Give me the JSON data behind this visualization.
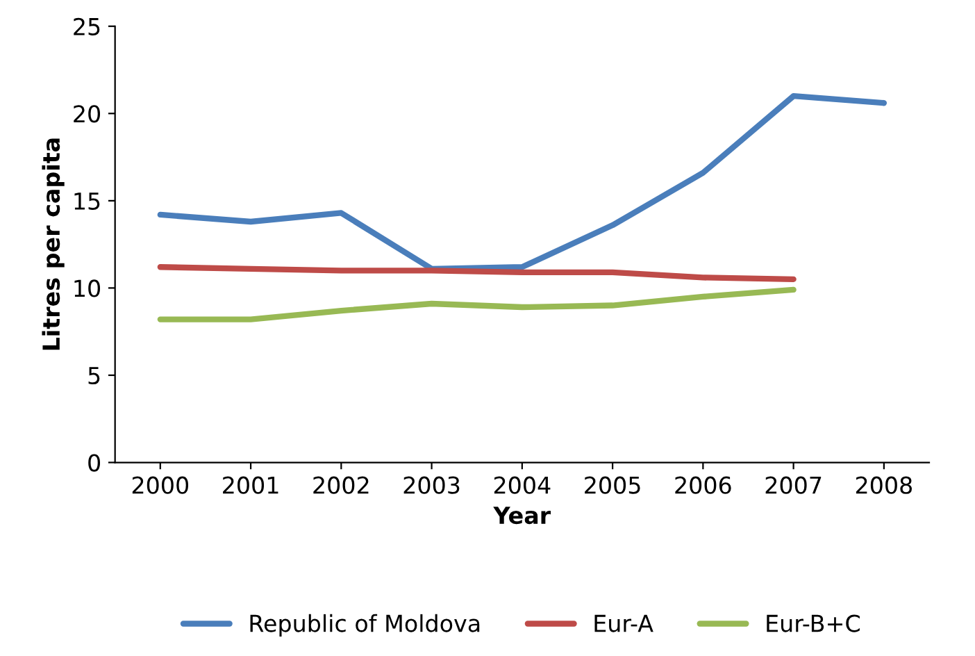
{
  "chart_data": {
    "type": "line",
    "xlabel": "Year",
    "ylabel": "Litres per capita",
    "categories": [
      "2000",
      "2001",
      "2002",
      "2003",
      "2004",
      "2005",
      "2006",
      "2007",
      "2008"
    ],
    "series": [
      {
        "name": "Republic of Moldova",
        "color": "#4a7ebb",
        "values": [
          14.2,
          13.8,
          14.3,
          11.1,
          11.2,
          13.6,
          16.6,
          21.0,
          20.6
        ]
      },
      {
        "name": "Eur-A",
        "color": "#be4b48",
        "values": [
          11.2,
          11.1,
          11.0,
          11.0,
          10.9,
          10.9,
          10.6,
          10.5,
          null
        ]
      },
      {
        "name": "Eur-B+C",
        "color": "#98b954",
        "values": [
          8.2,
          8.2,
          8.7,
          9.1,
          8.9,
          9.0,
          9.5,
          9.9,
          null
        ]
      }
    ],
    "ylim": [
      0,
      25
    ],
    "yticks": [
      0,
      5,
      10,
      15,
      20,
      25
    ],
    "grid": false,
    "legend": "bottom",
    "marker": "none",
    "line_style": "solid"
  }
}
